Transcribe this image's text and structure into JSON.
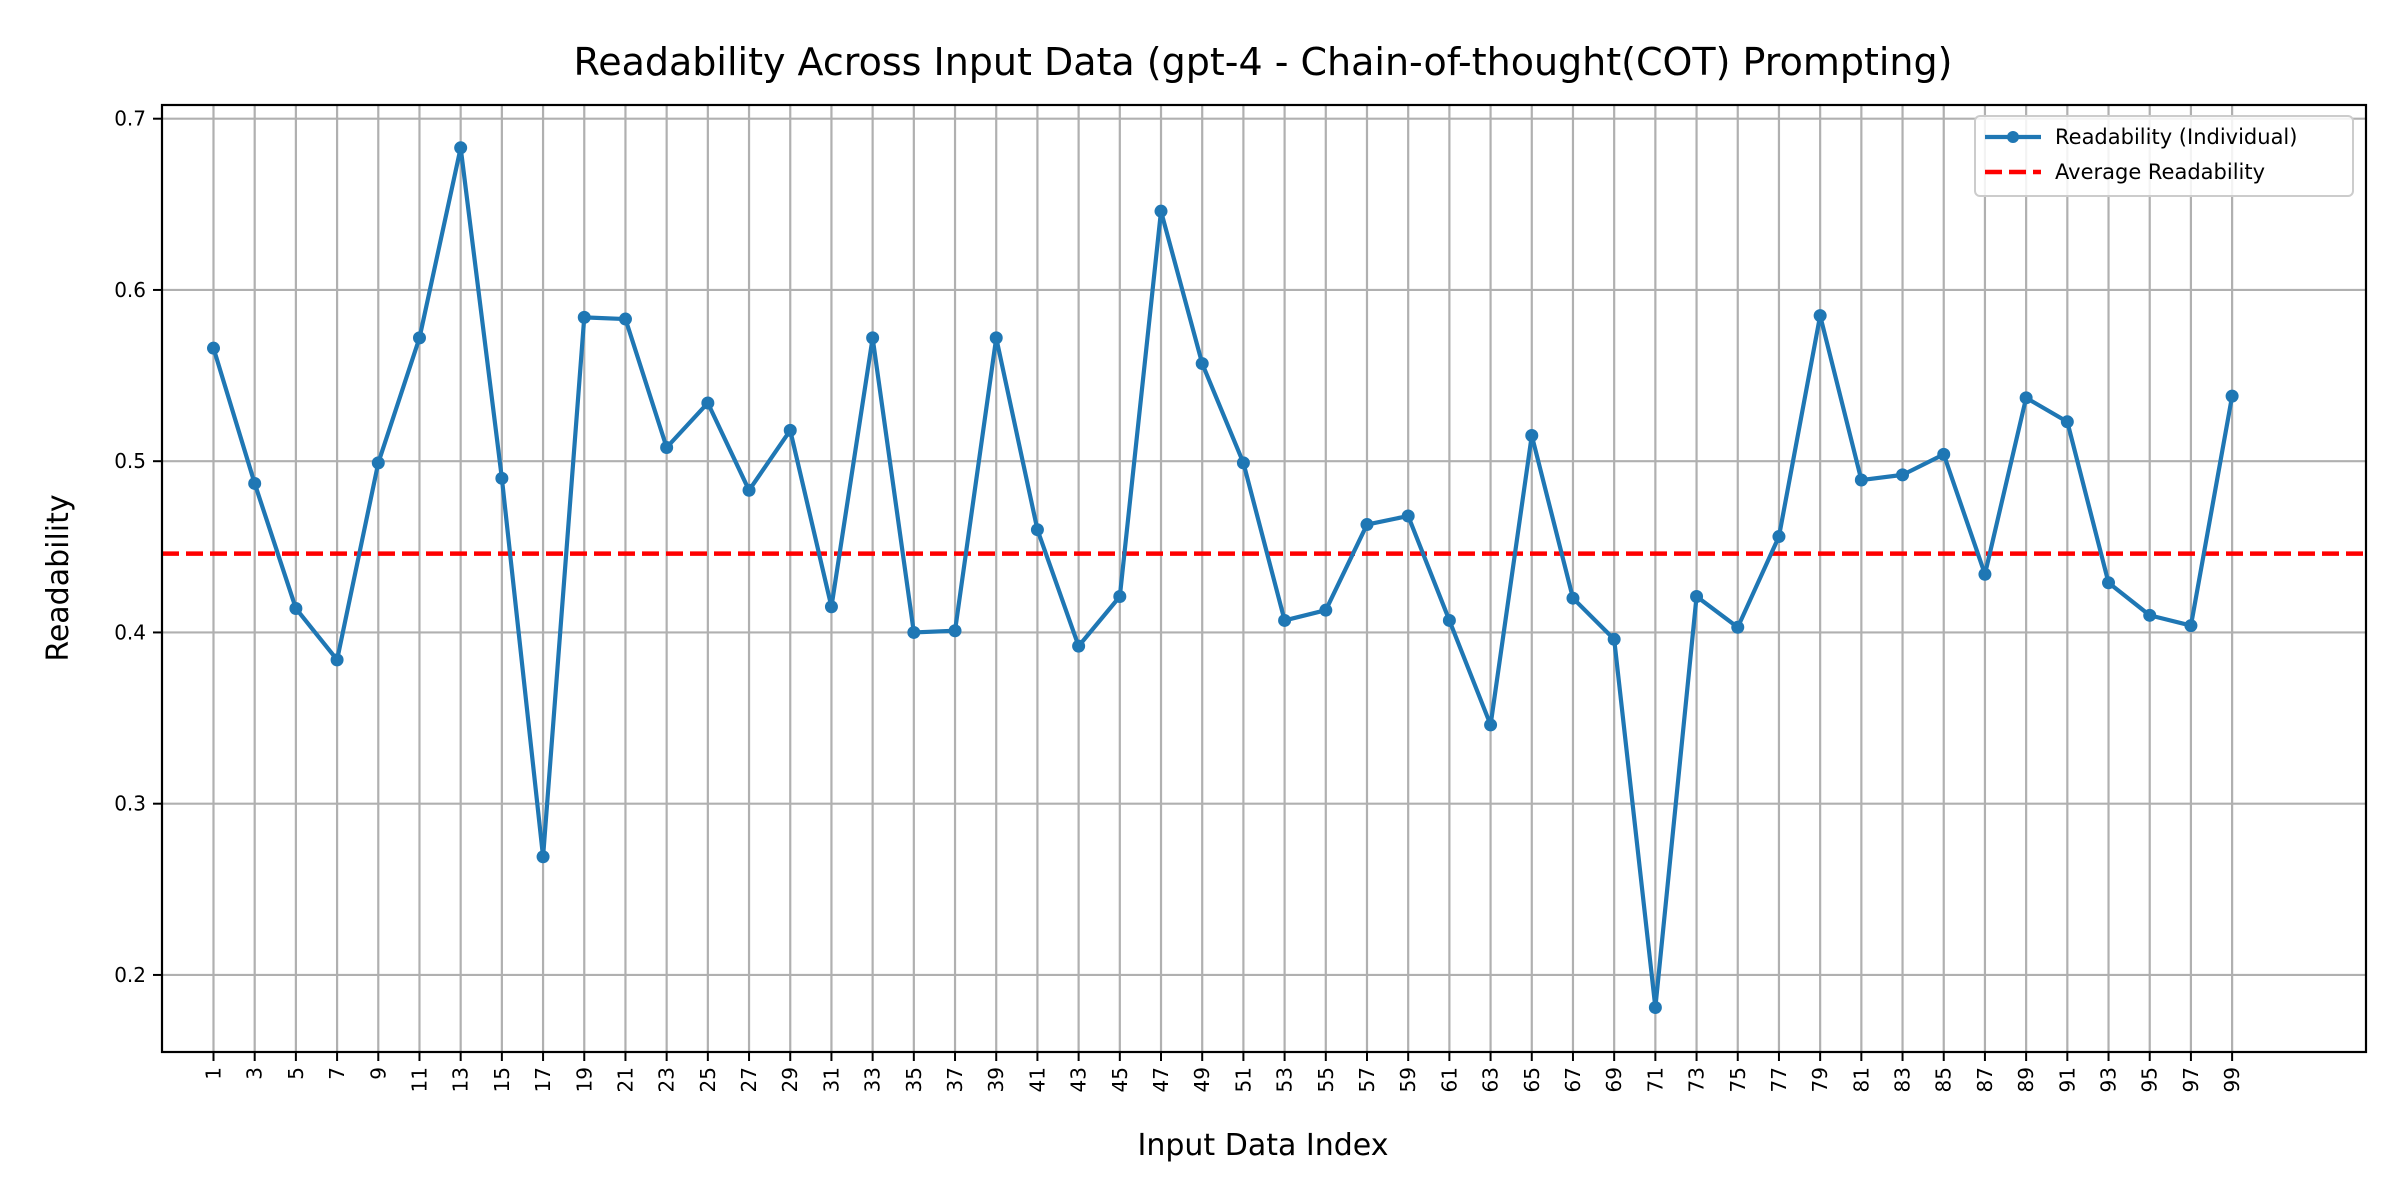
{
  "chart_data": {
    "type": "line",
    "title": "Readability Across Input Data (gpt-4 - Chain-of-thought(COT) Prompting)",
    "xlabel": "Input Data Index",
    "ylabel": "Readability",
    "xlim": [
      -1.5,
      105.5
    ],
    "ylim": [
      0.155,
      0.708
    ],
    "grid": true,
    "legend_position": "top-right",
    "x_ticks": [
      1,
      3,
      5,
      7,
      9,
      11,
      13,
      15,
      17,
      19,
      21,
      23,
      25,
      27,
      29,
      31,
      33,
      35,
      37,
      39,
      41,
      43,
      45,
      47,
      49,
      51,
      53,
      55,
      57,
      59,
      61,
      63,
      65,
      67,
      69,
      71,
      73,
      75,
      77,
      79,
      81,
      83,
      85,
      87,
      89,
      91,
      93,
      95,
      97,
      99
    ],
    "y_ticks": [
      0.2,
      0.3,
      0.4,
      0.5,
      0.6,
      0.7
    ],
    "y_tick_labels": [
      "0.2",
      "0.3",
      "0.4",
      "0.5",
      "0.6",
      "0.7"
    ],
    "x": [
      1,
      3,
      5,
      7,
      9,
      11,
      13,
      15,
      17,
      19,
      21,
      23,
      25,
      27,
      29,
      31,
      33,
      35,
      37,
      39,
      41,
      43,
      45,
      47,
      49,
      51,
      53,
      55,
      57,
      59,
      61,
      63,
      65,
      67,
      69,
      71,
      73,
      75,
      77,
      79,
      81,
      83,
      85,
      87,
      89,
      91,
      93,
      95,
      97,
      99
    ],
    "series": [
      {
        "name": "Readability (Individual)",
        "color": "#1f77b4",
        "style": "solid-with-markers",
        "values": [
          0.566,
          0.487,
          0.414,
          0.384,
          0.499,
          0.572,
          0.683,
          0.49,
          0.269,
          0.584,
          0.583,
          0.508,
          0.534,
          0.483,
          0.518,
          0.415,
          0.572,
          0.4,
          0.401,
          0.572,
          0.46,
          0.392,
          0.421,
          0.646,
          0.557,
          0.499,
          0.407,
          0.413,
          0.463,
          0.468,
          0.407,
          0.346,
          0.515,
          0.42,
          0.396,
          0.181,
          0.421,
          0.403,
          0.456,
          0.585,
          0.489,
          0.492,
          0.504,
          0.434,
          0.537,
          0.523,
          0.429,
          0.41,
          0.404,
          0.538
        ]
      }
    ],
    "reference_lines": [
      {
        "name": "Average Readability",
        "color": "#ff0000",
        "style": "dashed",
        "y": 0.446
      }
    ]
  }
}
